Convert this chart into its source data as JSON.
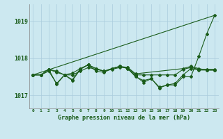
{
  "background_color": "#cce8f0",
  "grid_color": "#aaccdd",
  "line_color": "#1a5c1a",
  "title": "Graphe pression niveau de la mer (hPa)",
  "xlim": [
    -0.5,
    23.5
  ],
  "ylim": [
    1016.65,
    1019.45
  ],
  "yticks": [
    1017,
    1018,
    1019
  ],
  "xticks": [
    0,
    1,
    2,
    3,
    4,
    5,
    6,
    7,
    8,
    9,
    10,
    11,
    12,
    13,
    14,
    15,
    16,
    17,
    18,
    19,
    20,
    21,
    22,
    23
  ],
  "series": [
    {
      "x": [
        0,
        1,
        2,
        3,
        4,
        5,
        6,
        7,
        8,
        9,
        10,
        11,
        12,
        13,
        14,
        15,
        16,
        17,
        18,
        19,
        20,
        21,
        22,
        23
      ],
      "y": [
        1017.55,
        1017.55,
        1017.7,
        1017.65,
        1017.55,
        1017.55,
        1017.65,
        1017.75,
        1017.7,
        1017.65,
        1017.7,
        1017.75,
        1017.75,
        1017.55,
        1017.55,
        1017.55,
        1017.55,
        1017.55,
        1017.55,
        1017.7,
        1017.75,
        1017.7,
        1017.7,
        1017.7
      ],
      "marker": "D",
      "markersize": 2.0,
      "linewidth": 0.8
    },
    {
      "x": [
        0,
        1,
        2,
        3,
        4,
        5,
        6,
        7,
        8,
        9,
        10,
        11,
        12,
        13,
        14,
        15,
        16,
        17,
        18,
        19,
        20,
        21,
        22,
        23
      ],
      "y": [
        1017.55,
        1017.55,
        1017.7,
        1017.3,
        1017.55,
        1017.4,
        1017.7,
        1017.82,
        1017.72,
        1017.65,
        1017.72,
        1017.78,
        1017.72,
        1017.5,
        1017.4,
        1017.45,
        1017.22,
        1017.28,
        1017.32,
        1017.55,
        1017.72,
        1017.68,
        1017.68,
        1017.68
      ],
      "marker": "D",
      "markersize": 2.0,
      "linewidth": 0.8
    },
    {
      "x": [
        2,
        3,
        4,
        5,
        6,
        7,
        8,
        9,
        10,
        11,
        12,
        13,
        19,
        20,
        21,
        22,
        23
      ],
      "y": [
        1017.7,
        1017.62,
        1017.55,
        1017.6,
        1017.72,
        1017.82,
        1017.72,
        1017.65,
        1017.72,
        1017.78,
        1017.75,
        1017.58,
        1017.72,
        1017.78,
        1017.72,
        1017.68,
        1017.68
      ],
      "marker": "D",
      "markersize": 2.0,
      "linewidth": 0.8
    },
    {
      "x": [
        0,
        1,
        2,
        3,
        4,
        5,
        6,
        7,
        8,
        9,
        10,
        11,
        12,
        13,
        14,
        15,
        16,
        17,
        18,
        19,
        20,
        21,
        22,
        23
      ],
      "y": [
        1017.55,
        1017.55,
        1017.65,
        1017.32,
        1017.55,
        1017.42,
        1017.72,
        1017.82,
        1017.65,
        1017.62,
        1017.72,
        1017.78,
        1017.72,
        1017.52,
        1017.35,
        1017.45,
        1017.2,
        1017.28,
        1017.28,
        1017.5,
        1017.5,
        1018.05,
        1018.65,
        1019.15
      ],
      "marker": "D",
      "markersize": 2.0,
      "linewidth": 0.8
    },
    {
      "x": [
        0,
        23
      ],
      "y": [
        1017.55,
        1019.15
      ],
      "marker": null,
      "markersize": 0,
      "linewidth": 0.8
    }
  ]
}
